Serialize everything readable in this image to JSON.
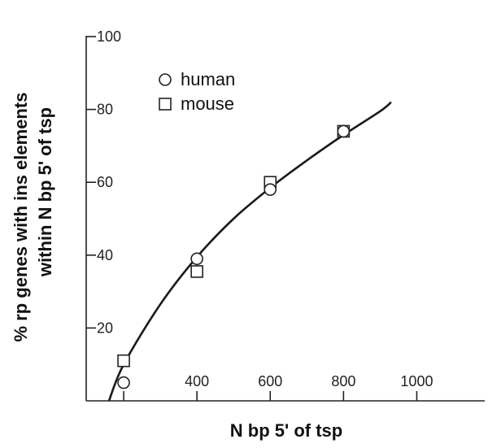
{
  "chart_data": {
    "type": "scatter",
    "xlabel": "N bp 5' of tsp",
    "ylabel_lines": [
      "% rp genes with ins elements",
      "within N bp 5' of tsp"
    ],
    "x_ticks": [
      400,
      600,
      800,
      1000
    ],
    "y_ticks": [
      20,
      40,
      60,
      80,
      100
    ],
    "xlim": [
      100,
      1100
    ],
    "ylim": [
      0,
      100
    ],
    "series": [
      {
        "name": "human",
        "marker": "circle",
        "points": [
          {
            "x": 200,
            "y": 5
          },
          {
            "x": 400,
            "y": 39
          },
          {
            "x": 600,
            "y": 58
          },
          {
            "x": 800,
            "y": 74
          }
        ]
      },
      {
        "name": "mouse",
        "marker": "square",
        "points": [
          {
            "x": 200,
            "y": 11
          },
          {
            "x": 400,
            "y": 35.5
          },
          {
            "x": 600,
            "y": 60
          },
          {
            "x": 800,
            "y": 74
          }
        ]
      }
    ],
    "fit_curve": {
      "type": "line",
      "points": [
        {
          "x": 160,
          "y": 0
        },
        {
          "x": 200,
          "y": 10
        },
        {
          "x": 300,
          "y": 26.5
        },
        {
          "x": 400,
          "y": 39.5
        },
        {
          "x": 500,
          "y": 50
        },
        {
          "x": 600,
          "y": 58.5
        },
        {
          "x": 700,
          "y": 66
        },
        {
          "x": 800,
          "y": 73
        },
        {
          "x": 900,
          "y": 79.5
        },
        {
          "x": 930,
          "y": 82
        }
      ]
    },
    "legend_position": "top-left",
    "grid": false
  }
}
